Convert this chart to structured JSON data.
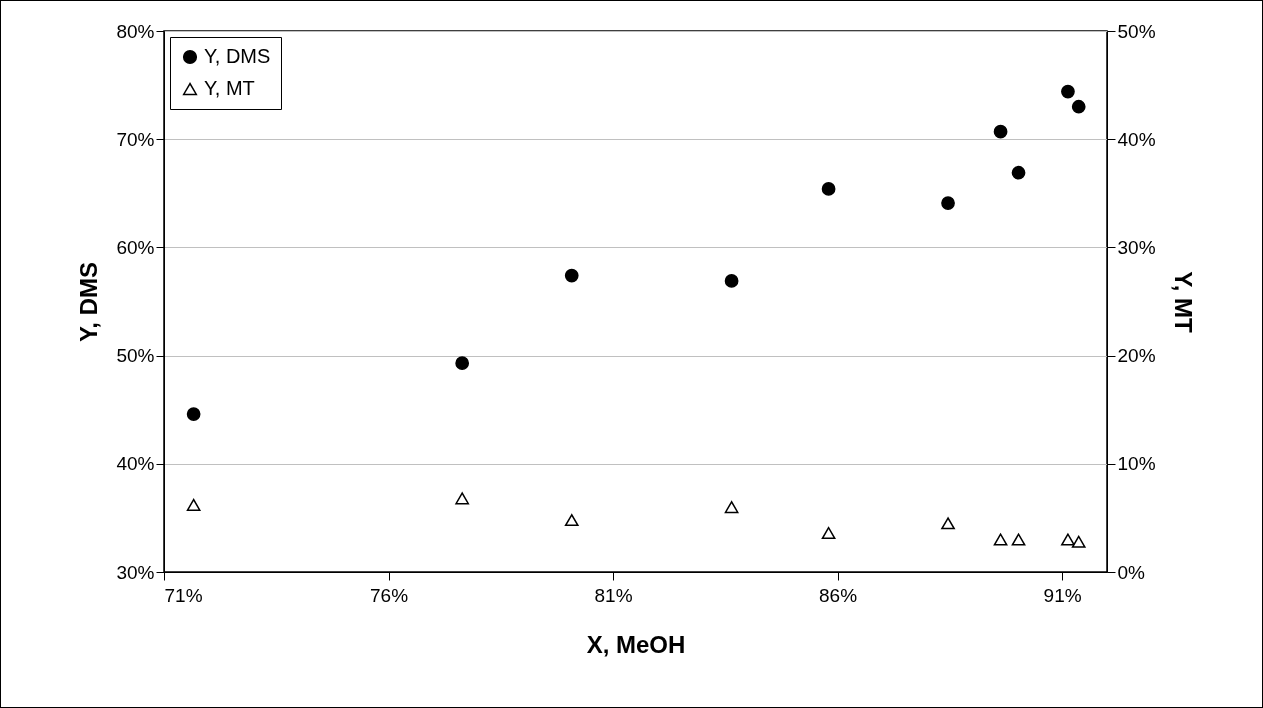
{
  "chart_data": {
    "type": "scatter",
    "xlabel": "X, MeOH",
    "ylabel": "Y, DMS",
    "y2label": "Y, MT",
    "series": [
      {
        "name": "Y, DMS",
        "color": "#000000",
        "marker": "circle",
        "x": [
          71.66,
          77.64,
          80.08,
          83.64,
          85.8,
          88.46,
          89.63,
          90.03,
          91.13,
          91.37
        ],
        "values": [
          44.6,
          49.3,
          57.4,
          56.9,
          65.4,
          64.1,
          70.7,
          66.9,
          74.4,
          73.0
        ]
      },
      {
        "name": "Y, MT",
        "color": "#000000",
        "marker": "triangle",
        "axis": "y2",
        "x": [
          71.66,
          77.64,
          80.08,
          83.64,
          85.8,
          88.46,
          89.63,
          90.03,
          91.13,
          91.37
        ],
        "values": [
          6.2,
          6.8,
          4.8,
          6.0,
          3.6,
          4.5,
          3.0,
          3.0,
          3.0,
          2.8
        ]
      }
    ],
    "xlim": [
      71,
      92
    ],
    "xticks": [
      {
        "value": 71,
        "label": "71%"
      },
      {
        "value": 76,
        "label": "76%"
      },
      {
        "value": 81,
        "label": "81%"
      },
      {
        "value": 86,
        "label": "86%"
      },
      {
        "value": 91,
        "label": "91%"
      }
    ],
    "ylim": [
      30,
      80
    ],
    "yticks": [
      {
        "value": 30,
        "label": "30%"
      },
      {
        "value": 40,
        "label": "40%"
      },
      {
        "value": 50,
        "label": "50%"
      },
      {
        "value": 60,
        "label": "60%"
      },
      {
        "value": 70,
        "label": "70%"
      },
      {
        "value": 80,
        "label": "80%"
      }
    ],
    "y2lim": [
      0,
      50
    ],
    "y2ticks": [
      {
        "value": 0,
        "label": "0%"
      },
      {
        "value": 10,
        "label": "10%"
      },
      {
        "value": 20,
        "label": "20%"
      },
      {
        "value": 30,
        "label": "30%"
      },
      {
        "value": 40,
        "label": "40%"
      },
      {
        "value": 50,
        "label": "50%"
      }
    ],
    "grid": "y",
    "legend": "top left"
  }
}
